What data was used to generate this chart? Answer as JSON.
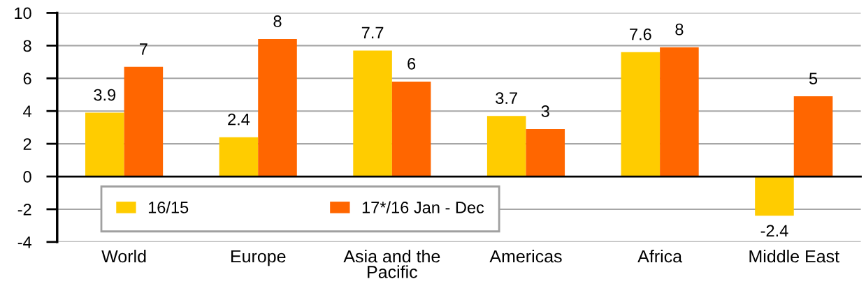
{
  "chart_data": {
    "type": "bar",
    "categories": [
      "World",
      "Europe",
      "Asia and the\nPacific",
      "Americas",
      "Africa",
      "Middle East"
    ],
    "series": [
      {
        "name": "16/15",
        "color": "#ffcc00",
        "values": [
          3.9,
          2.4,
          7.7,
          3.7,
          7.6,
          -2.4
        ],
        "value_labels": [
          "3.9",
          "2.4",
          "7.7",
          "3.7",
          "7.6",
          "-2.4"
        ]
      },
      {
        "name": "17*/16 Jan - Dec",
        "color": "#ff6600",
        "values": [
          6.7,
          8.4,
          5.8,
          2.9,
          7.9,
          4.9
        ],
        "value_labels": [
          "7",
          "8",
          "6",
          "3",
          "8",
          "5"
        ]
      }
    ],
    "ylim": [
      -4,
      10
    ],
    "yticks": [
      -4,
      -2,
      0,
      2,
      4,
      6,
      8,
      10
    ],
    "grid": "y",
    "legend": "bottom left"
  }
}
